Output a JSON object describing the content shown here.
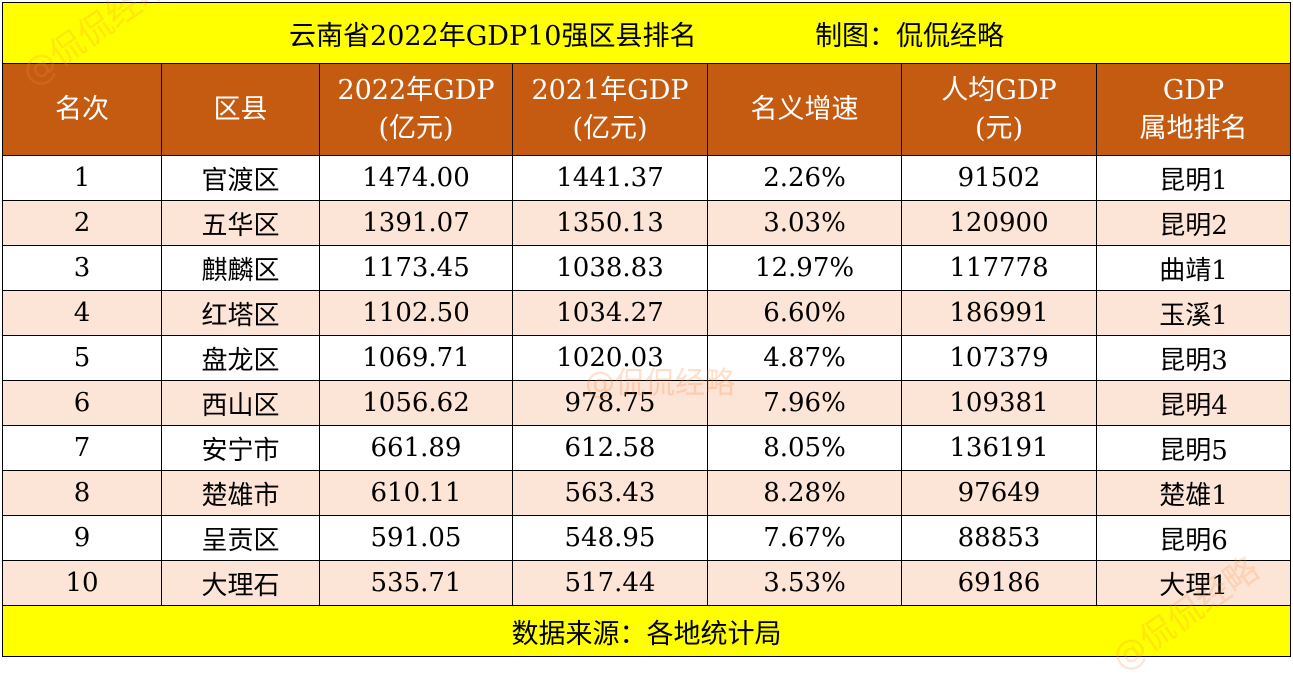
{
  "title": {
    "main": "云南省2022年GDP10强区县排名",
    "credit": "制图：侃侃经略"
  },
  "header": {
    "columns": [
      {
        "line1": "名次",
        "line2": ""
      },
      {
        "line1": "区县",
        "line2": ""
      },
      {
        "line1": "2022年GDP",
        "line2": "(亿元)"
      },
      {
        "line1": "2021年GDP",
        "line2": "(亿元)"
      },
      {
        "line1": "名义增速",
        "line2": ""
      },
      {
        "line1": "人均GDP",
        "line2": "(元)"
      },
      {
        "line1": "GDP",
        "line2": "属地排名"
      }
    ]
  },
  "rows": [
    {
      "rank": "1",
      "district": "官渡区",
      "gdp2022": "1474.00",
      "gdp2021": "1441.37",
      "growth": "2.26%",
      "per_capita": "91502",
      "local_rank": "昆明1"
    },
    {
      "rank": "2",
      "district": "五华区",
      "gdp2022": "1391.07",
      "gdp2021": "1350.13",
      "growth": "3.03%",
      "per_capita": "120900",
      "local_rank": "昆明2"
    },
    {
      "rank": "3",
      "district": "麒麟区",
      "gdp2022": "1173.45",
      "gdp2021": "1038.83",
      "growth": "12.97%",
      "per_capita": "117778",
      "local_rank": "曲靖1"
    },
    {
      "rank": "4",
      "district": "红塔区",
      "gdp2022": "1102.50",
      "gdp2021": "1034.27",
      "growth": "6.60%",
      "per_capita": "186991",
      "local_rank": "玉溪1"
    },
    {
      "rank": "5",
      "district": "盘龙区",
      "gdp2022": "1069.71",
      "gdp2021": "1020.03",
      "growth": "4.87%",
      "per_capita": "107379",
      "local_rank": "昆明3"
    },
    {
      "rank": "6",
      "district": "西山区",
      "gdp2022": "1056.62",
      "gdp2021": "978.75",
      "growth": "7.96%",
      "per_capita": "109381",
      "local_rank": "昆明4"
    },
    {
      "rank": "7",
      "district": "安宁市",
      "gdp2022": "661.89",
      "gdp2021": "612.58",
      "growth": "8.05%",
      "per_capita": "136191",
      "local_rank": "昆明5"
    },
    {
      "rank": "8",
      "district": "楚雄市",
      "gdp2022": "610.11",
      "gdp2021": "563.43",
      "growth": "8.28%",
      "per_capita": "97649",
      "local_rank": "楚雄1"
    },
    {
      "rank": "9",
      "district": "呈贡区",
      "gdp2022": "591.05",
      "gdp2021": "548.95",
      "growth": "7.67%",
      "per_capita": "88853",
      "local_rank": "昆明6"
    },
    {
      "rank": "10",
      "district": "大理石",
      "gdp2022": "535.71",
      "gdp2021": "517.44",
      "growth": "3.53%",
      "per_capita": "69186",
      "local_rank": "大理1"
    }
  ],
  "footer": {
    "source": "数据来源：各地统计局"
  },
  "watermark": "@侃侃经略",
  "colors": {
    "title_bg": "#ffff00",
    "header_bg": "#c55a11",
    "header_text": "#ffffff",
    "row_alt_bg": "#fce4d6",
    "row_bg": "#ffffff",
    "footer_bg": "#ffff00"
  }
}
